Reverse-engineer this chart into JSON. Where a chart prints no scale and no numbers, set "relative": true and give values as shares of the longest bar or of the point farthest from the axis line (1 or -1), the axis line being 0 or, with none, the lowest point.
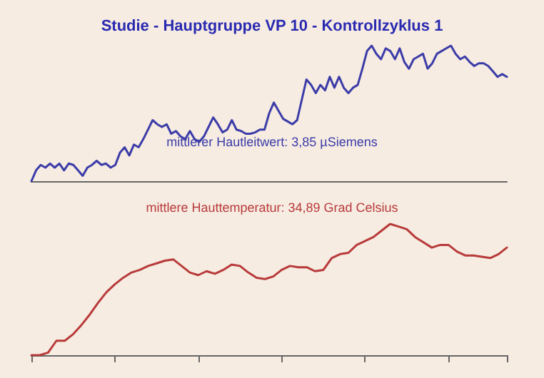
{
  "chart_data": [
    {
      "type": "line",
      "title": "Studie - Hauptgruppe VP 10 - Kontrollzyklus 1",
      "relative": true,
      "annotations": [
        "mittlerer Hautleitwert: 3,85 µSiemens"
      ],
      "categories": [
        null,
        null,
        null,
        null,
        null,
        null,
        null,
        null,
        null,
        null,
        null,
        null,
        null,
        null,
        null,
        null,
        null,
        null,
        null,
        null,
        null,
        null,
        null,
        null,
        null,
        null,
        null,
        null,
        null,
        null,
        null,
        null,
        null,
        null,
        null,
        null,
        null,
        null,
        null,
        null,
        null,
        null,
        null,
        null,
        null,
        null,
        null,
        null,
        null,
        null,
        null,
        null,
        null,
        null,
        null,
        null,
        null,
        null,
        null,
        null,
        null,
        null,
        null,
        null,
        null,
        null,
        null,
        null,
        null,
        null,
        null,
        null,
        null,
        null,
        null,
        null,
        null,
        null,
        null,
        null,
        null,
        null,
        null,
        null,
        null,
        null,
        null,
        null,
        null,
        null,
        null,
        null,
        null,
        null,
        null,
        null,
        null,
        null,
        null,
        null,
        null,
        null,
        null
      ],
      "series": [
        {
          "color": "#3c3ca8",
          "values": [
            0,
            0.08,
            0.12,
            0.1,
            0.13,
            0.1,
            0.13,
            0.08,
            0.13,
            0.12,
            0.08,
            0.04,
            0.1,
            0.12,
            0.15,
            0.12,
            0.13,
            0.1,
            0.12,
            0.21,
            0.25,
            0.19,
            0.27,
            0.25,
            0.31,
            0.38,
            0.45,
            0.42,
            0.4,
            0.42,
            0.35,
            0.37,
            0.33,
            0.31,
            0.37,
            0.31,
            0.29,
            0.33,
            0.4,
            0.47,
            0.42,
            0.36,
            0.38,
            0.45,
            0.38,
            0.37,
            0.35,
            0.35,
            0.36,
            0.38,
            0.38,
            0.5,
            0.58,
            0.52,
            0.46,
            0.44,
            0.42,
            0.45,
            0.6,
            0.75,
            0.71,
            0.65,
            0.71,
            0.67,
            0.77,
            0.69,
            0.77,
            0.69,
            0.65,
            0.69,
            0.71,
            0.83,
            0.96,
            1,
            0.94,
            0.9,
            0.98,
            0.96,
            0.9,
            0.98,
            0.88,
            0.83,
            0.9,
            0.92,
            0.94,
            0.83,
            0.87,
            0.94,
            0.96,
            0.98,
            1,
            0.94,
            0.9,
            0.92,
            0.88,
            0.85,
            0.87,
            0.87,
            0.85,
            0.81,
            0.77,
            0.79,
            0.77
          ]
        }
      ]
    },
    {
      "type": "line",
      "relative": true,
      "annotations": [
        "mittlere Hauttemperatur: 34,89 Grad Celsius"
      ],
      "categories": [
        null,
        null,
        null,
        null,
        null,
        null,
        null,
        null,
        null,
        null,
        null,
        null,
        null,
        null,
        null,
        null,
        null,
        null,
        null,
        null,
        null,
        null,
        null,
        null,
        null,
        null,
        null,
        null,
        null,
        null,
        null,
        null,
        null,
        null,
        null,
        null,
        null,
        null,
        null,
        null,
        null,
        null,
        null,
        null,
        null,
        null,
        null,
        null,
        null,
        null,
        null,
        null,
        null,
        null,
        null,
        null,
        null,
        null
      ],
      "series": [
        {
          "color": "#b83a3a",
          "values": [
            0,
            0,
            0.02,
            0.11,
            0.11,
            0.16,
            0.23,
            0.31,
            0.4,
            0.48,
            0.54,
            0.59,
            0.63,
            0.65,
            0.68,
            0.7,
            0.72,
            0.73,
            0.68,
            0.63,
            0.61,
            0.64,
            0.62,
            0.65,
            0.69,
            0.68,
            0.63,
            0.59,
            0.58,
            0.6,
            0.65,
            0.68,
            0.67,
            0.67,
            0.64,
            0.65,
            0.74,
            0.77,
            0.78,
            0.84,
            0.87,
            0.9,
            0.95,
            1,
            0.98,
            0.96,
            0.9,
            0.86,
            0.82,
            0.84,
            0.84,
            0.79,
            0.76,
            0.76,
            0.75,
            0.74,
            0.77,
            0.82
          ]
        }
      ]
    }
  ]
}
